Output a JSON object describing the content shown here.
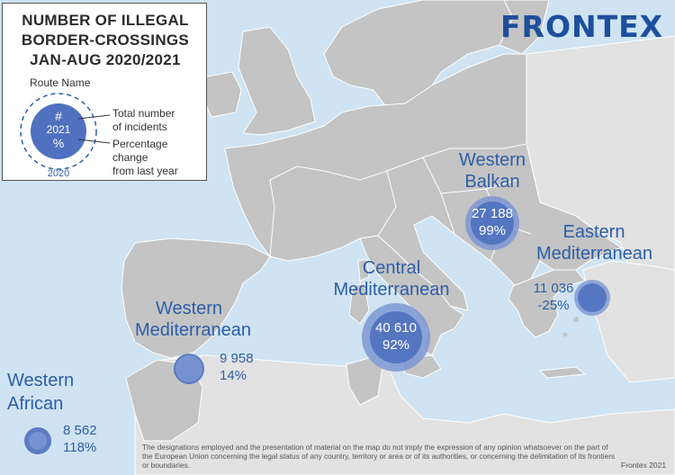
{
  "title": {
    "line1": "NUMBER OF ILLEGAL",
    "line2": "BORDER-CROSSINGS",
    "line3": "JAN-AUG 2020/2021"
  },
  "legend": {
    "route_name": "Route Name",
    "hash": "#",
    "year_current": "2021",
    "percent": "%",
    "year_previous": "2020",
    "total_line1": "Total number",
    "total_line2": "of incidents",
    "change_line1": "Percentage change",
    "change_line2": "from last year"
  },
  "brand": "FRONTEX",
  "routes": {
    "western_african": {
      "name_line1": "Western",
      "name_line2": "African",
      "count": "8 562",
      "change": "118%",
      "count_value": 8562,
      "change_value": 118
    },
    "western_mediterranean": {
      "name_line1": "Western",
      "name_line2": "Mediterranean",
      "count": "9 958",
      "change": "14%",
      "count_value": 9958,
      "change_value": 14
    },
    "central_mediterranean": {
      "name_line1": "Central",
      "name_line2": "Mediterranean",
      "count": "40 610",
      "change": "92%",
      "count_value": 40610,
      "change_value": 92
    },
    "western_balkan": {
      "name_line1": "Western",
      "name_line2": "Balkan",
      "count": "27 188",
      "change": "99%",
      "count_value": 27188,
      "change_value": 99
    },
    "eastern_mediterranean": {
      "name_line1": "Eastern",
      "name_line2": "Mediterranean",
      "count": "11 036",
      "change": "-25%",
      "count_value": 11036,
      "change_value": -25
    }
  },
  "disclaimer": "The designations employed and the presentation of material on the map do not imply the expression of any opinion whatsoever on the part of the European Union concerning the legal status of any country, territory or area or of its authorities, or concerning the delimitation of its frontiers or boundaries.",
  "credit": "Frontex 2021",
  "colors": {
    "sea": "#cfe3f2",
    "land": "#c4c4c4",
    "land_outside": "#e2e2e2",
    "border": "#ffffff",
    "bubble": "#4f71bf",
    "bubble_2020": "#7d97d4",
    "text_blue": "#2d5ea8",
    "brand_blue": "#1d4f9e"
  }
}
